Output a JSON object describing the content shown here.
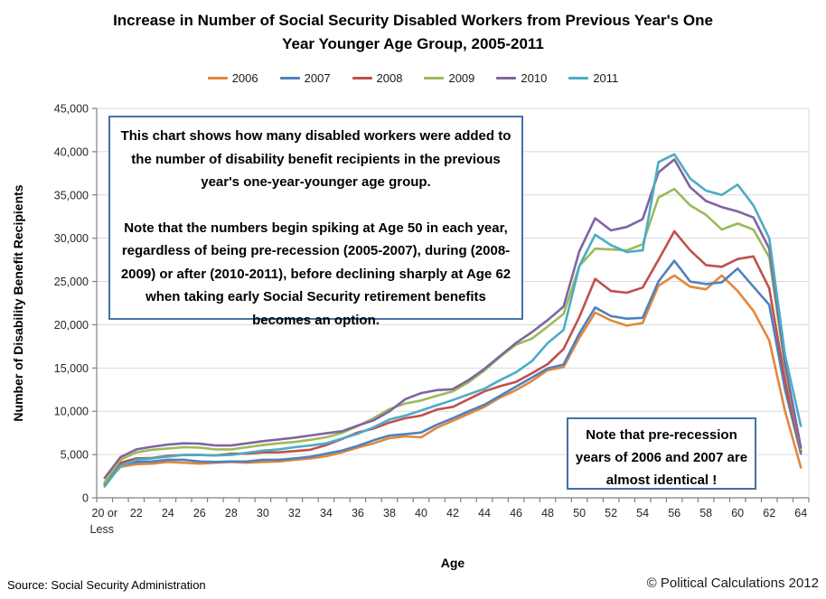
{
  "title_lines": [
    "Increase in Number of Social Security Disabled Workers from Previous Year's One",
    "Year Younger Age Group, 2005-2011"
  ],
  "annotations": {
    "main": {
      "para1": "This chart shows how many disabled workers were added to the number of disability benefit recipients in the previous year's one-year-younger age group.",
      "para2": "Note that the numbers begin spiking at Age 50 in each year, regardless of being pre-recession (2005-2007), during (2008-2009) or after (2010-2011), before declining sharply at Age 62 when taking early Social Security retirement benefits becomes an option."
    },
    "secondary": {
      "text": "Note that pre-recession years of 2006 and 2007 are almost identical !"
    }
  },
  "footer": {
    "source": "Source: Social Security Administration",
    "copyright": "© Political Calculations 2012"
  },
  "colors": {
    "annotation_border": "#4472A4",
    "axis_line": "#808080",
    "gridline": "#D9D9D9",
    "label_text": "#262626"
  },
  "chart_data": {
    "type": "line",
    "title": "Increase in Number of Social Security Disabled Workers from Previous Year's One Year Younger Age Group, 2005-2011",
    "xlabel": "Age",
    "ylabel": "Number of Disability Benefit Recipients",
    "ylim": [
      0,
      45000
    ],
    "ytick_step": 5000,
    "grid": "horizontal",
    "legend_position": "top",
    "x_categories": [
      "20 or Less",
      "21",
      "22",
      "23",
      "24",
      "25",
      "26",
      "27",
      "28",
      "29",
      "30",
      "31",
      "32",
      "33",
      "34",
      "35",
      "36",
      "37",
      "38",
      "39",
      "40",
      "41",
      "42",
      "43",
      "44",
      "45",
      "46",
      "47",
      "48",
      "49",
      "50",
      "51",
      "52",
      "53",
      "54",
      "55",
      "56",
      "57",
      "58",
      "59",
      "60",
      "61",
      "62",
      "63",
      "64"
    ],
    "x_axis_labeled_every": 2,
    "first_label_lines": [
      "20 or",
      "Less"
    ],
    "series": [
      {
        "name": "2006",
        "color": "#E2883B",
        "values": [
          1600,
          3580,
          3880,
          3950,
          4150,
          4050,
          3950,
          4050,
          4150,
          4050,
          4150,
          4200,
          4400,
          4550,
          4800,
          5250,
          5800,
          6300,
          6900,
          7100,
          7000,
          8100,
          8900,
          9700,
          10500,
          11600,
          12450,
          13500,
          14750,
          15100,
          18500,
          21400,
          20500,
          19900,
          20200,
          24500,
          25700,
          24400,
          24100,
          25700,
          23900,
          21600,
          18200,
          10000,
          3500
        ]
      },
      {
        "name": "2007",
        "color": "#4F81BD",
        "values": [
          1500,
          3800,
          4150,
          4200,
          4400,
          4400,
          4200,
          4150,
          4200,
          4200,
          4400,
          4400,
          4550,
          4750,
          5100,
          5450,
          6000,
          6650,
          7200,
          7350,
          7550,
          8450,
          9200,
          10000,
          10750,
          11800,
          12850,
          13900,
          14950,
          15400,
          19000,
          22000,
          21000,
          20700,
          20800,
          25000,
          27400,
          25000,
          24700,
          24900,
          26500,
          24400,
          22300,
          12500,
          5100
        ]
      },
      {
        "name": "2008",
        "color": "#C0504D",
        "values": [
          1600,
          4050,
          4550,
          4600,
          4850,
          4950,
          4950,
          4900,
          5100,
          5100,
          5250,
          5250,
          5400,
          5550,
          6100,
          6800,
          7550,
          8000,
          8700,
          9200,
          9500,
          10200,
          10500,
          11400,
          12300,
          12900,
          13400,
          14400,
          15450,
          17200,
          20900,
          25300,
          23900,
          23700,
          24300,
          27500,
          30800,
          28600,
          26900,
          26700,
          27600,
          27900,
          24200,
          13500,
          5400
        ]
      },
      {
        "name": "2009",
        "color": "#9BBB59",
        "values": [
          1800,
          4400,
          5250,
          5550,
          5700,
          5850,
          5800,
          5600,
          5600,
          5850,
          6100,
          6300,
          6450,
          6700,
          7000,
          7500,
          8300,
          9200,
          10250,
          10900,
          11250,
          11800,
          12300,
          13350,
          14700,
          16300,
          17700,
          18400,
          19800,
          21250,
          26800,
          28800,
          28700,
          28600,
          29300,
          34700,
          35700,
          33800,
          32700,
          31000,
          31700,
          31000,
          27800,
          15000,
          5600
        ]
      },
      {
        "name": "2010",
        "color": "#8064A2",
        "values": [
          2300,
          4700,
          5600,
          5900,
          6150,
          6300,
          6250,
          6050,
          6050,
          6300,
          6550,
          6750,
          6950,
          7200,
          7450,
          7700,
          8350,
          8950,
          10000,
          11400,
          12100,
          12450,
          12550,
          13600,
          14900,
          16400,
          17900,
          19150,
          20550,
          22100,
          28500,
          32300,
          30900,
          31300,
          32200,
          37600,
          39100,
          35900,
          34300,
          33600,
          33100,
          32400,
          28800,
          15500,
          5800
        ]
      },
      {
        "name": "2011",
        "color": "#4BACC6",
        "values": [
          1300,
          3700,
          4400,
          4550,
          4750,
          4950,
          4950,
          4900,
          4950,
          5200,
          5450,
          5600,
          5850,
          6050,
          6300,
          6850,
          7400,
          8150,
          9050,
          9500,
          10100,
          10700,
          11300,
          11950,
          12600,
          13600,
          14500,
          15800,
          17900,
          19400,
          26800,
          30400,
          29200,
          28400,
          28600,
          38800,
          39700,
          36900,
          35500,
          35000,
          36200,
          33800,
          30000,
          16500,
          8300
        ]
      }
    ]
  }
}
